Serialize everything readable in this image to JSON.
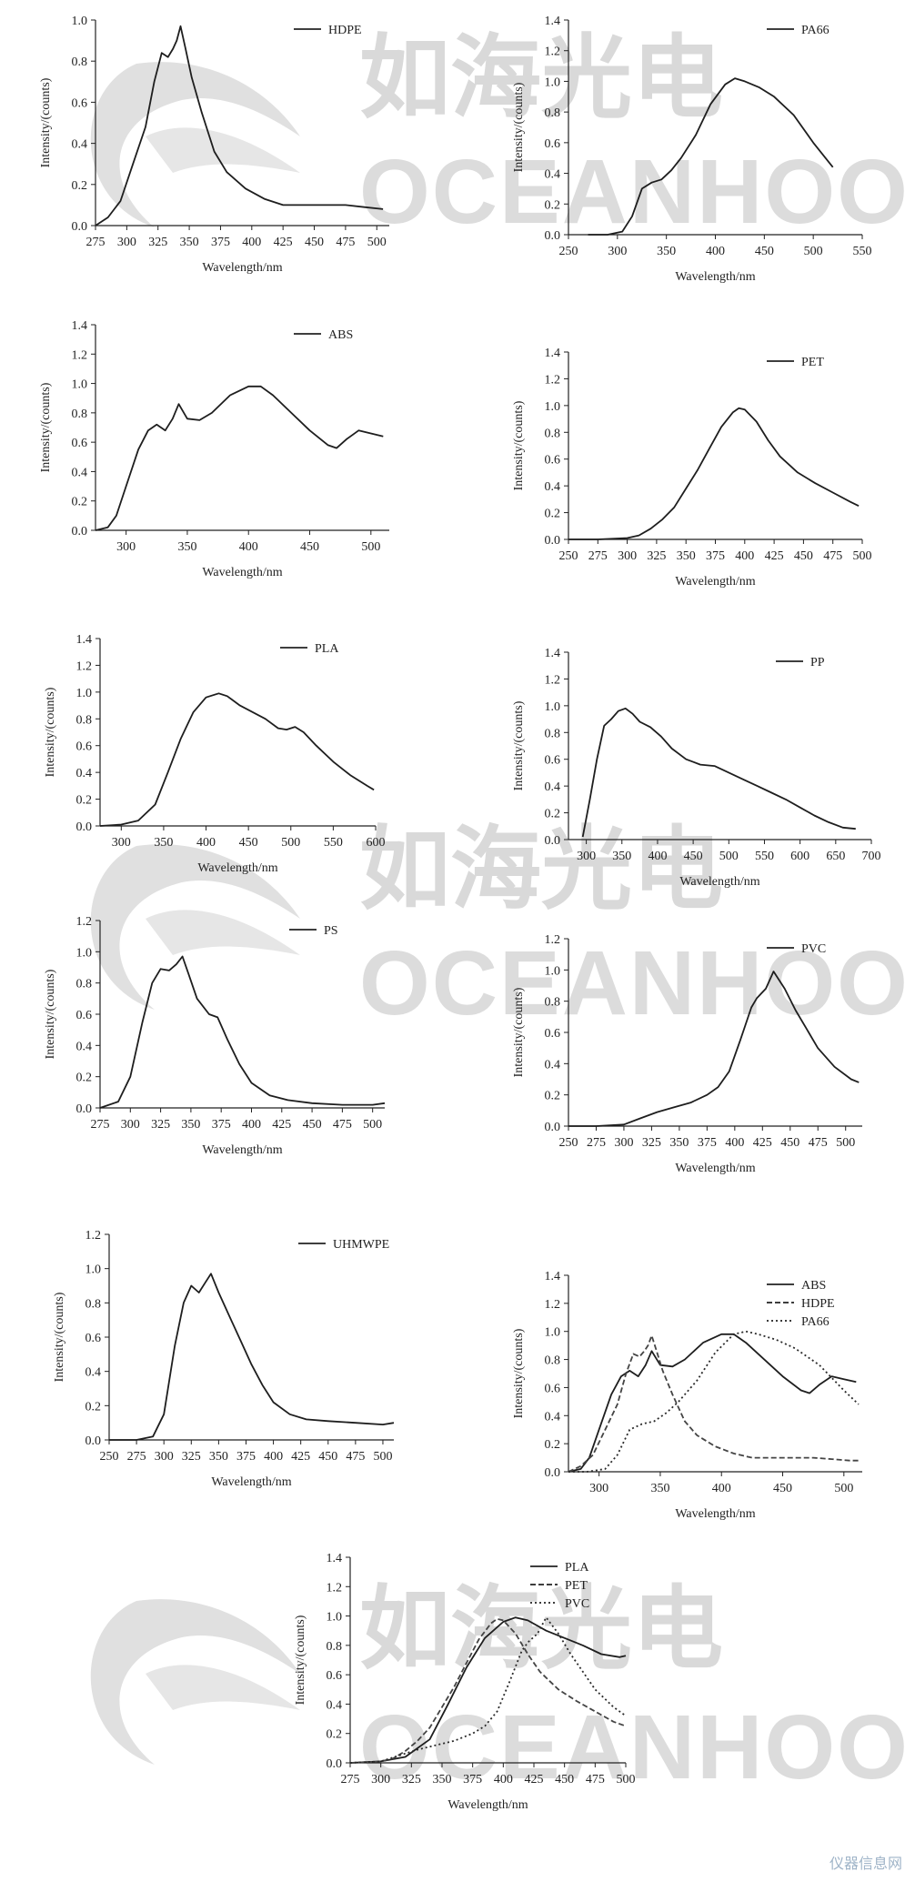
{
  "watermark": {
    "cn": "如海光电",
    "en": "OCEANHOOD",
    "site": "仪器信息网"
  },
  "chart_data": [
    {
      "type": "line",
      "xlabel": "Wavelength/nm",
      "ylabel": "Intensity/(counts)",
      "xlim": [
        275,
        510
      ],
      "ylim": [
        0,
        1.0
      ],
      "xticks": [
        275,
        300,
        325,
        350,
        375,
        400,
        425,
        450,
        475,
        500
      ],
      "yticks": [
        0.0,
        0.2,
        0.4,
        0.6,
        0.8,
        1.0
      ],
      "legend_position": "top-right",
      "series": [
        {
          "name": "HDPE",
          "x": [
            275,
            285,
            295,
            305,
            315,
            322,
            328,
            333,
            337,
            340,
            343,
            347,
            352,
            360,
            370,
            380,
            395,
            410,
            425,
            450,
            475,
            490,
            505
          ],
          "y": [
            0.0,
            0.04,
            0.12,
            0.3,
            0.48,
            0.7,
            0.84,
            0.82,
            0.86,
            0.9,
            0.97,
            0.86,
            0.72,
            0.55,
            0.36,
            0.26,
            0.18,
            0.13,
            0.1,
            0.1,
            0.1,
            0.09,
            0.08
          ]
        }
      ]
    },
    {
      "type": "line",
      "xlabel": "Wavelength/nm",
      "ylabel": "Intensity/(counts)",
      "xlim": [
        250,
        550
      ],
      "ylim": [
        0,
        1.4
      ],
      "xticks": [
        250,
        300,
        350,
        400,
        450,
        500,
        550
      ],
      "yticks": [
        0.0,
        0.2,
        0.4,
        0.6,
        0.8,
        1.0,
        1.2,
        1.4
      ],
      "legend_position": "top-right",
      "series": [
        {
          "name": "PA66",
          "x": [
            270,
            290,
            305,
            315,
            325,
            335,
            345,
            355,
            365,
            380,
            395,
            410,
            420,
            430,
            445,
            460,
            480,
            500,
            520
          ],
          "y": [
            0.0,
            0.0,
            0.02,
            0.12,
            0.3,
            0.34,
            0.36,
            0.42,
            0.5,
            0.65,
            0.85,
            0.98,
            1.02,
            1.0,
            0.96,
            0.9,
            0.78,
            0.6,
            0.44
          ]
        }
      ]
    },
    {
      "type": "line",
      "xlabel": "Wavelength/nm",
      "ylabel": "Intensity/(counts)",
      "xlim": [
        275,
        515
      ],
      "ylim": [
        0,
        1.4
      ],
      "xticks": [
        300,
        350,
        400,
        450,
        500
      ],
      "yticks": [
        0.0,
        0.2,
        0.4,
        0.6,
        0.8,
        1.0,
        1.2,
        1.4
      ],
      "legend_position": "top-right",
      "series": [
        {
          "name": "ABS",
          "x": [
            275,
            285,
            292,
            300,
            310,
            318,
            325,
            332,
            338,
            343,
            350,
            360,
            370,
            385,
            400,
            410,
            420,
            435,
            450,
            465,
            472,
            480,
            490,
            500,
            510
          ],
          "y": [
            0.0,
            0.02,
            0.1,
            0.3,
            0.55,
            0.68,
            0.72,
            0.68,
            0.76,
            0.86,
            0.76,
            0.75,
            0.8,
            0.92,
            0.98,
            0.98,
            0.92,
            0.8,
            0.68,
            0.58,
            0.56,
            0.62,
            0.68,
            0.66,
            0.64
          ]
        }
      ]
    },
    {
      "type": "line",
      "xlabel": "Wavelength/nm",
      "ylabel": "Intensity/(counts)",
      "xlim": [
        250,
        500
      ],
      "ylim": [
        0,
        1.4
      ],
      "xticks": [
        250,
        275,
        300,
        325,
        350,
        375,
        400,
        425,
        450,
        475,
        500
      ],
      "yticks": [
        0.0,
        0.2,
        0.4,
        0.6,
        0.8,
        1.0,
        1.2,
        1.4
      ],
      "legend_position": "top-right",
      "series": [
        {
          "name": "PET",
          "x": [
            250,
            275,
            300,
            310,
            320,
            330,
            340,
            350,
            360,
            370,
            380,
            390,
            395,
            400,
            410,
            420,
            430,
            445,
            460,
            475,
            490,
            497
          ],
          "y": [
            0.0,
            0.0,
            0.01,
            0.03,
            0.08,
            0.15,
            0.24,
            0.38,
            0.52,
            0.68,
            0.84,
            0.95,
            0.98,
            0.97,
            0.88,
            0.74,
            0.62,
            0.5,
            0.42,
            0.35,
            0.28,
            0.25
          ]
        }
      ]
    },
    {
      "type": "line",
      "xlabel": "Wavelength/nm",
      "ylabel": "Intensity/(counts)",
      "xlim": [
        275,
        600
      ],
      "ylim": [
        0,
        1.4
      ],
      "xticks": [
        300,
        350,
        400,
        450,
        500,
        550,
        600
      ],
      "yticks": [
        0.0,
        0.2,
        0.4,
        0.6,
        0.8,
        1.0,
        1.2,
        1.4
      ],
      "legend_position": "top-right",
      "series": [
        {
          "name": "PLA",
          "x": [
            275,
            300,
            320,
            340,
            355,
            370,
            385,
            400,
            415,
            425,
            440,
            455,
            470,
            485,
            495,
            505,
            515,
            530,
            550,
            570,
            590,
            598
          ],
          "y": [
            0.0,
            0.01,
            0.04,
            0.16,
            0.4,
            0.65,
            0.85,
            0.96,
            0.99,
            0.97,
            0.9,
            0.85,
            0.8,
            0.73,
            0.72,
            0.74,
            0.7,
            0.6,
            0.48,
            0.38,
            0.3,
            0.27
          ]
        }
      ]
    },
    {
      "type": "line",
      "xlabel": "Wavelength/nm",
      "ylabel": "Intensity/(counts)",
      "xlim": [
        275,
        700
      ],
      "ylim": [
        0,
        1.4
      ],
      "xticks": [
        300,
        350,
        400,
        450,
        500,
        550,
        600,
        650,
        700
      ],
      "yticks": [
        0.0,
        0.2,
        0.4,
        0.6,
        0.8,
        1.0,
        1.2,
        1.4
      ],
      "legend_position": "top-right",
      "series": [
        {
          "name": "PP",
          "x": [
            295,
            305,
            315,
            325,
            335,
            345,
            355,
            365,
            375,
            390,
            405,
            420,
            440,
            460,
            480,
            500,
            520,
            540,
            560,
            580,
            600,
            620,
            640,
            660,
            678
          ],
          "y": [
            0.02,
            0.3,
            0.6,
            0.85,
            0.9,
            0.96,
            0.98,
            0.94,
            0.88,
            0.84,
            0.77,
            0.68,
            0.6,
            0.56,
            0.55,
            0.5,
            0.45,
            0.4,
            0.35,
            0.3,
            0.24,
            0.18,
            0.13,
            0.09,
            0.08
          ]
        }
      ]
    },
    {
      "type": "line",
      "xlabel": "Wavelength/nm",
      "ylabel": "Intensity/(counts)",
      "xlim": [
        275,
        510
      ],
      "ylim": [
        0,
        1.2
      ],
      "xticks": [
        275,
        300,
        325,
        350,
        375,
        400,
        425,
        450,
        475,
        500
      ],
      "yticks": [
        0.0,
        0.2,
        0.4,
        0.6,
        0.8,
        1.0,
        1.2
      ],
      "legend_position": "top-right",
      "series": [
        {
          "name": "PS",
          "x": [
            275,
            290,
            300,
            310,
            318,
            325,
            332,
            338,
            343,
            348,
            355,
            365,
            372,
            380,
            390,
            400,
            415,
            430,
            450,
            475,
            500,
            510
          ],
          "y": [
            0.0,
            0.04,
            0.2,
            0.55,
            0.8,
            0.89,
            0.88,
            0.92,
            0.97,
            0.86,
            0.7,
            0.6,
            0.58,
            0.44,
            0.28,
            0.16,
            0.08,
            0.05,
            0.03,
            0.02,
            0.02,
            0.03
          ]
        }
      ]
    },
    {
      "type": "line",
      "xlabel": "Wavelength/nm",
      "ylabel": "Intensity/(counts)",
      "xlim": [
        250,
        515
      ],
      "ylim": [
        0,
        1.2
      ],
      "xticks": [
        250,
        275,
        300,
        325,
        350,
        375,
        400,
        425,
        450,
        475,
        500
      ],
      "yticks": [
        0.0,
        0.2,
        0.4,
        0.6,
        0.8,
        1.0,
        1.2
      ],
      "legend_position": "top-right",
      "series": [
        {
          "name": "PVC",
          "x": [
            250,
            275,
            300,
            315,
            330,
            345,
            360,
            375,
            385,
            395,
            405,
            415,
            420,
            428,
            435,
            445,
            455,
            465,
            475,
            490,
            505,
            512
          ],
          "y": [
            0.0,
            0.0,
            0.01,
            0.05,
            0.09,
            0.12,
            0.15,
            0.2,
            0.25,
            0.35,
            0.55,
            0.76,
            0.82,
            0.88,
            0.99,
            0.88,
            0.74,
            0.62,
            0.5,
            0.38,
            0.3,
            0.28
          ]
        }
      ]
    },
    {
      "type": "line",
      "xlabel": "Wavelength/nm",
      "ylabel": "Intensity/(counts)",
      "xlim": [
        250,
        510
      ],
      "ylim": [
        0,
        1.2
      ],
      "xticks": [
        250,
        275,
        300,
        325,
        350,
        375,
        400,
        425,
        450,
        475,
        500
      ],
      "yticks": [
        0.0,
        0.2,
        0.4,
        0.6,
        0.8,
        1.0,
        1.2
      ],
      "legend_position": "top-right",
      "series": [
        {
          "name": "UHMWPE",
          "x": [
            250,
            275,
            290,
            300,
            310,
            318,
            325,
            332,
            338,
            343,
            350,
            360,
            370,
            380,
            390,
            400,
            415,
            430,
            450,
            475,
            500,
            510
          ],
          "y": [
            0.0,
            0.0,
            0.02,
            0.15,
            0.55,
            0.8,
            0.9,
            0.86,
            0.92,
            0.97,
            0.86,
            0.72,
            0.58,
            0.44,
            0.32,
            0.22,
            0.15,
            0.12,
            0.11,
            0.1,
            0.09,
            0.1
          ]
        }
      ]
    },
    {
      "type": "line",
      "xlabel": "Wavelength/nm",
      "ylabel": "Intensity/(counts)",
      "xlim": [
        275,
        515
      ],
      "ylim": [
        0,
        1.4
      ],
      "xticks": [
        300,
        350,
        400,
        450,
        500
      ],
      "yticks": [
        0.0,
        0.2,
        0.4,
        0.6,
        0.8,
        1.0,
        1.2,
        1.4
      ],
      "legend_position": "top-right",
      "series": [
        {
          "name": "ABS",
          "x": [
            275,
            285,
            292,
            300,
            310,
            318,
            325,
            332,
            338,
            343,
            350,
            360,
            370,
            385,
            400,
            410,
            420,
            435,
            450,
            465,
            472,
            480,
            490,
            500,
            510
          ],
          "y": [
            0.0,
            0.02,
            0.1,
            0.3,
            0.55,
            0.68,
            0.72,
            0.68,
            0.76,
            0.86,
            0.76,
            0.75,
            0.8,
            0.92,
            0.98,
            0.98,
            0.92,
            0.8,
            0.68,
            0.58,
            0.56,
            0.62,
            0.68,
            0.66,
            0.64
          ]
        },
        {
          "name": "HDPE",
          "x": [
            275,
            285,
            295,
            305,
            315,
            322,
            328,
            333,
            337,
            340,
            343,
            347,
            352,
            360,
            370,
            380,
            395,
            410,
            425,
            450,
            475,
            490,
            505,
            512
          ],
          "y": [
            0.0,
            0.04,
            0.12,
            0.3,
            0.48,
            0.7,
            0.84,
            0.82,
            0.86,
            0.9,
            0.97,
            0.86,
            0.72,
            0.55,
            0.36,
            0.26,
            0.18,
            0.13,
            0.1,
            0.1,
            0.1,
            0.09,
            0.08,
            0.08
          ]
        },
        {
          "name": "PA66",
          "x": [
            275,
            290,
            305,
            315,
            325,
            335,
            345,
            355,
            365,
            380,
            395,
            410,
            420,
            430,
            445,
            460,
            480,
            500,
            512
          ],
          "y": [
            0.0,
            0.0,
            0.02,
            0.12,
            0.3,
            0.34,
            0.36,
            0.42,
            0.5,
            0.65,
            0.85,
            0.98,
            1.0,
            0.98,
            0.94,
            0.88,
            0.76,
            0.58,
            0.48
          ]
        }
      ]
    },
    {
      "type": "line",
      "xlabel": "Wavelength/nm",
      "ylabel": "Intensity/(counts)",
      "xlim": [
        275,
        500
      ],
      "ylim": [
        0,
        1.4
      ],
      "xticks": [
        275,
        300,
        325,
        350,
        375,
        400,
        425,
        450,
        475,
        500
      ],
      "yticks": [
        0.0,
        0.2,
        0.4,
        0.6,
        0.8,
        1.0,
        1.2,
        1.4
      ],
      "legend_position": "top-right",
      "series": [
        {
          "name": "PLA",
          "x": [
            275,
            300,
            320,
            340,
            355,
            370,
            385,
            400,
            410,
            420,
            435,
            450,
            465,
            480,
            495,
            500
          ],
          "y": [
            0.0,
            0.01,
            0.04,
            0.16,
            0.4,
            0.65,
            0.85,
            0.96,
            0.99,
            0.97,
            0.9,
            0.85,
            0.8,
            0.74,
            0.72,
            0.73
          ]
        },
        {
          "name": "PET",
          "x": [
            275,
            300,
            310,
            320,
            330,
            340,
            350,
            360,
            370,
            380,
            390,
            395,
            400,
            410,
            420,
            430,
            445,
            460,
            475,
            490,
            500
          ],
          "y": [
            0.0,
            0.01,
            0.03,
            0.08,
            0.15,
            0.24,
            0.38,
            0.52,
            0.68,
            0.84,
            0.95,
            0.98,
            0.97,
            0.88,
            0.74,
            0.62,
            0.5,
            0.42,
            0.35,
            0.28,
            0.25
          ]
        },
        {
          "name": "PVC",
          "x": [
            275,
            300,
            315,
            330,
            345,
            360,
            375,
            385,
            395,
            405,
            415,
            420,
            428,
            435,
            445,
            455,
            465,
            475,
            490,
            500
          ],
          "y": [
            0.0,
            0.01,
            0.05,
            0.09,
            0.12,
            0.15,
            0.2,
            0.25,
            0.35,
            0.55,
            0.76,
            0.82,
            0.88,
            0.99,
            0.88,
            0.74,
            0.62,
            0.5,
            0.38,
            0.32
          ]
        }
      ]
    }
  ]
}
